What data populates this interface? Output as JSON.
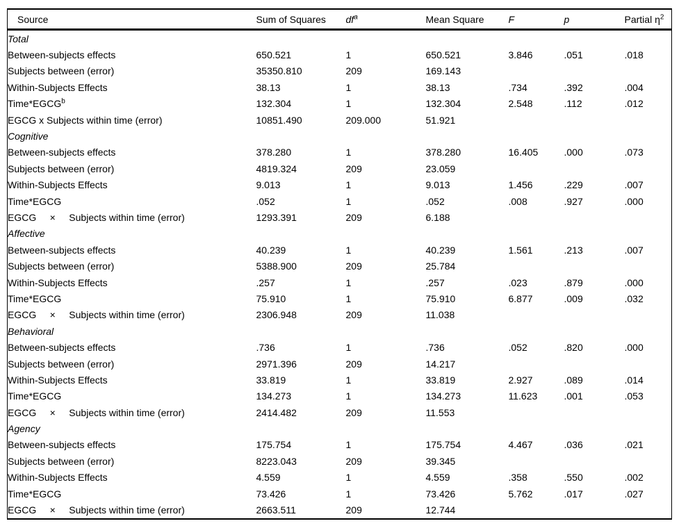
{
  "table": {
    "columns": [
      {
        "key": "source",
        "label": "Source",
        "italic": false
      },
      {
        "key": "ss",
        "label": "Sum of Squares",
        "italic": false
      },
      {
        "key": "df",
        "label": "df",
        "italic": true,
        "sup": "a"
      },
      {
        "key": "ms",
        "label": "Mean Square",
        "italic": false
      },
      {
        "key": "f",
        "label": "F",
        "italic": true
      },
      {
        "key": "p",
        "label": "p",
        "italic": true
      },
      {
        "key": "eta",
        "label": "Partial η",
        "italic": false,
        "sup": "2"
      }
    ],
    "sections": [
      {
        "name": "Total",
        "rows": [
          {
            "source": "Between-subjects effects",
            "ss": "650.521",
            "df": "1",
            "ms": "650.521",
            "f": "3.846",
            "p": ".051",
            "eta": ".018"
          },
          {
            "source": "Subjects between (error)",
            "ss": "35350.810",
            "df": "209",
            "ms": "169.143",
            "f": "",
            "p": "",
            "eta": ""
          },
          {
            "source": "Within-Subjects Effects",
            "ss": "38.13",
            "df": "1",
            "ms": "38.13",
            "f": ".734",
            "p": ".392",
            "eta": ".004"
          },
          {
            "source": "Time*EGCG",
            "source_sup": "b",
            "ss": "132.304",
            "df": "1",
            "ms": "132.304",
            "f": "2.548",
            "p": ".112",
            "eta": ".012"
          },
          {
            "source": "EGCG x Subjects within time (error)",
            "ss": "10851.490",
            "df": "209.000",
            "ms": "51.921",
            "f": "",
            "p": "",
            "eta": ""
          }
        ]
      },
      {
        "name": "Cognitive",
        "rows": [
          {
            "source": "Between-subjects effects",
            "ss": "378.280",
            "df": "1",
            "ms": "378.280",
            "f": "16.405",
            "p": ".000",
            "eta": ".073"
          },
          {
            "source": "Subjects between (error)",
            "ss": "4819.324",
            "df": "209",
            "ms": "23.059",
            "f": "",
            "p": "",
            "eta": ""
          },
          {
            "source": "Within-Subjects Effects",
            "ss": "9.013",
            "df": "1",
            "ms": "9.013",
            "f": "1.456",
            "p": ".229",
            "eta": ".007"
          },
          {
            "source": "Time*EGCG",
            "ss": ".052",
            "df": "1",
            "ms": ".052",
            "f": ".008",
            "p": ".927",
            "eta": ".000"
          },
          {
            "source": "EGCG     ×     Subjects within time (error)",
            "ss": "1293.391",
            "df": "209",
            "ms": "6.188",
            "f": "",
            "p": "",
            "eta": ""
          }
        ]
      },
      {
        "name": "Affective",
        "rows": [
          {
            "source": "Between-subjects effects",
            "ss": "40.239",
            "df": "1",
            "ms": "40.239",
            "f": "1.561",
            "p": ".213",
            "eta": ".007"
          },
          {
            "source": "Subjects between (error)",
            "ss": "5388.900",
            "df": "209",
            "ms": "25.784",
            "f": "",
            "p": "",
            "eta": ""
          },
          {
            "source": "Within-Subjects Effects",
            "ss": ".257",
            "df": "1",
            "ms": ".257",
            "f": ".023",
            "p": ".879",
            "eta": ".000"
          },
          {
            "source": "Time*EGCG",
            "ss": "75.910",
            "df": "1",
            "ms": "75.910",
            "f": "6.877",
            "p": ".009",
            "eta": ".032"
          },
          {
            "source": "EGCG     ×     Subjects within time (error)",
            "ss": "2306.948",
            "df": "209",
            "ms": "11.038",
            "f": "",
            "p": "",
            "eta": ""
          }
        ]
      },
      {
        "name": "Behavioral",
        "rows": [
          {
            "source": "Between-subjects effects",
            "ss": ".736",
            "df": "1",
            "ms": ".736",
            "f": ".052",
            "p": ".820",
            "eta": ".000"
          },
          {
            "source": "Subjects between (error)",
            "ss": "2971.396",
            "df": "209",
            "ms": "14.217",
            "f": "",
            "p": "",
            "eta": ""
          },
          {
            "source": "Within-Subjects Effects",
            "ss": "33.819",
            "df": "1",
            "ms": "33.819",
            "f": "2.927",
            "p": ".089",
            "eta": ".014"
          },
          {
            "source": "Time*EGCG",
            "ss": "134.273",
            "df": "1",
            "ms": "134.273",
            "f": "11.623",
            "p": ".001",
            "eta": ".053"
          },
          {
            "source": "EGCG     ×     Subjects within time (error)",
            "ss": "2414.482",
            "df": "209",
            "ms": "11.553",
            "f": "",
            "p": "",
            "eta": ""
          }
        ]
      },
      {
        "name": "Agency",
        "rows": [
          {
            "source": "Between-subjects effects",
            "ss": "175.754",
            "df": "1",
            "ms": "175.754",
            "f": "4.467",
            "p": ".036",
            "eta": ".021"
          },
          {
            "source": "Subjects between (error)",
            "ss": "8223.043",
            "df": "209",
            "ms": "39.345",
            "f": "",
            "p": "",
            "eta": ""
          },
          {
            "source": "Within-Subjects Effects",
            "ss": "4.559",
            "df": "1",
            "ms": "4.559",
            "f": ".358",
            "p": ".550",
            "eta": ".002"
          },
          {
            "source": "Time*EGCG",
            "ss": "73.426",
            "df": "1",
            "ms": "73.426",
            "f": "5.762",
            "p": ".017",
            "eta": ".027"
          },
          {
            "source": "EGCG     ×     Subjects within time (error)",
            "ss": "2663.511",
            "df": "209",
            "ms": "12.744",
            "f": "",
            "p": "",
            "eta": ""
          }
        ]
      }
    ]
  },
  "style": {
    "text_color": "#000000",
    "background_color": "#ffffff",
    "rule_color": "#000000"
  }
}
